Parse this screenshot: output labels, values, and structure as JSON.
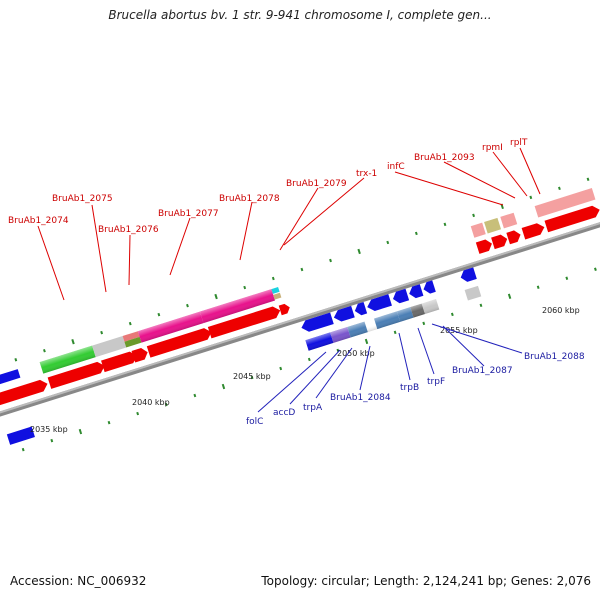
{
  "title": "Brucella abortus bv. 1 str. 9-941 chromosome I, complete gen...",
  "footer": {
    "accession": "Accession: NC_006932",
    "summary": "Topology: circular; Length: 2,124,241 bp; Genes: 2,076"
  },
  "scale_labels": [
    "2035 kbp",
    "2040 kbp",
    "2045 kbp",
    "2050 kbp",
    "2055 kbp",
    "2060 kbp"
  ],
  "upper_gene_labels": [
    "BruAb1_2074",
    "BruAb1_2075",
    "BruAb1_2076",
    "BruAb1_2077",
    "BruAb1_2078",
    "BruAb1_2079",
    "trx-1",
    "infC",
    "BruAb1_2093",
    "rpmI",
    "rplT"
  ],
  "lower_gene_labels": [
    "folC",
    "accD",
    "trpA",
    "BruAb1_2084",
    "trpB",
    "trpF",
    "BruAb1_2087",
    "BruAb1_2088"
  ],
  "colors": {
    "forward_cds": "#ee0000",
    "reverse_cds": "#1010e0",
    "upper_label": "#cc0000",
    "lower_label": "#1a1aa0",
    "backbone": "#888888",
    "ticks": "#2f8a2f"
  }
}
